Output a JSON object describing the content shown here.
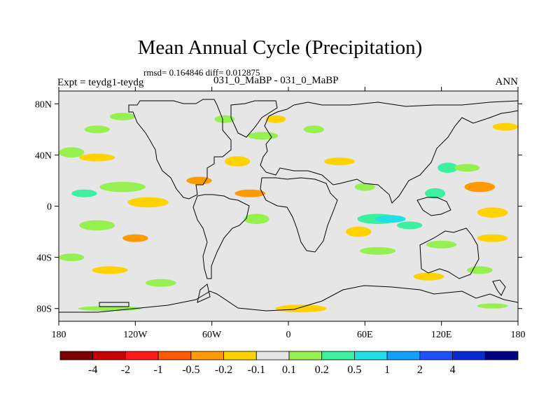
{
  "title": "Mean Annual Cycle (Precipitation)",
  "stats_text": "rmsd= 0.164846 diff= 0.012875",
  "left_label": "Expt = teydg1-teydg",
  "center_label": "031_0_MaBP - 031_0_MaBP",
  "right_label": "ANN",
  "map": {
    "projection": "cylindrical-equidistant",
    "lon_range": [
      -180,
      180
    ],
    "lat_range": [
      -90,
      90
    ],
    "background_color": "#e6e6e6",
    "lon_ticks": [
      {
        "value": -180,
        "label": "180"
      },
      {
        "value": -120,
        "label": "120W"
      },
      {
        "value": -60,
        "label": "60W"
      },
      {
        "value": 0,
        "label": "0"
      },
      {
        "value": 60,
        "label": "60E"
      },
      {
        "value": 120,
        "label": "120E"
      },
      {
        "value": 180,
        "label": "180"
      }
    ],
    "lat_ticks": [
      {
        "value": 80,
        "label": "80N"
      },
      {
        "value": 40,
        "label": "40N"
      },
      {
        "value": 0,
        "label": "0"
      },
      {
        "value": -40,
        "label": "40S"
      },
      {
        "value": -80,
        "label": "80S"
      }
    ]
  },
  "colorbar": {
    "colors": [
      "#7a0000",
      "#c80000",
      "#ff1a1a",
      "#ff5a00",
      "#ff9b00",
      "#ffd200",
      "#e6e6e6",
      "#96f050",
      "#3cf0a0",
      "#20e0e6",
      "#10a0ff",
      "#1e50ff",
      "#0a2ad2",
      "#000080"
    ],
    "labels": [
      "-4",
      "-2",
      "-1",
      "-0.5",
      "-0.2",
      "-0.1",
      "0.1",
      "0.2",
      "0.5",
      "1",
      "2",
      "4"
    ]
  },
  "blobs": [
    {
      "lon": -170,
      "lat": 42,
      "rx": 10,
      "ry": 4,
      "level": "pos-small"
    },
    {
      "lon": -150,
      "lat": 38,
      "rx": 14,
      "ry": 3,
      "level": "neg-small"
    },
    {
      "lon": -130,
      "lat": 15,
      "rx": 18,
      "ry": 4,
      "level": "pos-small"
    },
    {
      "lon": -160,
      "lat": 10,
      "rx": 10,
      "ry": 3,
      "level": "pos-mid"
    },
    {
      "lon": -110,
      "lat": 3,
      "rx": 16,
      "ry": 4,
      "level": "neg-small"
    },
    {
      "lon": -150,
      "lat": -15,
      "rx": 14,
      "ry": 4,
      "level": "pos-small"
    },
    {
      "lon": -120,
      "lat": -25,
      "rx": 10,
      "ry": 3,
      "level": "neg-mid"
    },
    {
      "lon": -170,
      "lat": -40,
      "rx": 10,
      "ry": 3,
      "level": "pos-small"
    },
    {
      "lon": -140,
      "lat": -50,
      "rx": 14,
      "ry": 3,
      "level": "neg-small"
    },
    {
      "lon": -100,
      "lat": -60,
      "rx": 12,
      "ry": 3,
      "level": "pos-small"
    },
    {
      "lon": -150,
      "lat": 60,
      "rx": 10,
      "ry": 3,
      "level": "pos-small"
    },
    {
      "lon": -70,
      "lat": 20,
      "rx": 10,
      "ry": 3,
      "level": "neg-mid"
    },
    {
      "lon": -30,
      "lat": 10,
      "rx": 12,
      "ry": 3,
      "level": "neg-mid"
    },
    {
      "lon": -25,
      "lat": -10,
      "rx": 10,
      "ry": 4,
      "level": "pos-small"
    },
    {
      "lon": -40,
      "lat": 35,
      "rx": 10,
      "ry": 4,
      "level": "neg-small"
    },
    {
      "lon": -20,
      "lat": 55,
      "rx": 12,
      "ry": 3,
      "level": "pos-small"
    },
    {
      "lon": -50,
      "lat": 68,
      "rx": 8,
      "ry": 3,
      "level": "pos-small"
    },
    {
      "lon": -10,
      "lat": 68,
      "rx": 8,
      "ry": 3,
      "level": "neg-small"
    },
    {
      "lon": 20,
      "lat": 60,
      "rx": 8,
      "ry": 3,
      "level": "pos-small"
    },
    {
      "lon": 40,
      "lat": 35,
      "rx": 12,
      "ry": 3,
      "level": "neg-small"
    },
    {
      "lon": 60,
      "lat": 15,
      "rx": 8,
      "ry": 3,
      "level": "pos-small"
    },
    {
      "lon": 70,
      "lat": -10,
      "rx": 16,
      "ry": 4,
      "level": "pos-mid"
    },
    {
      "lon": 80,
      "lat": -10,
      "rx": 12,
      "ry": 3,
      "level": "pos-high"
    },
    {
      "lon": 95,
      "lat": -15,
      "rx": 10,
      "ry": 3,
      "level": "pos-mid"
    },
    {
      "lon": 55,
      "lat": -20,
      "rx": 10,
      "ry": 4,
      "level": "neg-small"
    },
    {
      "lon": 70,
      "lat": -35,
      "rx": 14,
      "ry": 3,
      "level": "pos-small"
    },
    {
      "lon": 115,
      "lat": 10,
      "rx": 8,
      "ry": 4,
      "level": "pos-mid"
    },
    {
      "lon": 125,
      "lat": 30,
      "rx": 8,
      "ry": 4,
      "level": "pos-mid"
    },
    {
      "lon": 140,
      "lat": 30,
      "rx": 10,
      "ry": 3,
      "level": "pos-small"
    },
    {
      "lon": 150,
      "lat": 15,
      "rx": 12,
      "ry": 4,
      "level": "neg-mid"
    },
    {
      "lon": 160,
      "lat": -5,
      "rx": 12,
      "ry": 4,
      "level": "neg-small"
    },
    {
      "lon": 160,
      "lat": -25,
      "rx": 12,
      "ry": 3,
      "level": "neg-small"
    },
    {
      "lon": 120,
      "lat": -30,
      "rx": 12,
      "ry": 3,
      "level": "pos-small"
    },
    {
      "lon": 150,
      "lat": -50,
      "rx": 10,
      "ry": 3,
      "level": "pos-small"
    },
    {
      "lon": 110,
      "lat": -55,
      "rx": 12,
      "ry": 3,
      "level": "neg-small"
    },
    {
      "lon": 10,
      "lat": -80,
      "rx": 20,
      "ry": 3,
      "level": "neg-small"
    },
    {
      "lon": -140,
      "lat": -80,
      "rx": 25,
      "ry": 2,
      "level": "pos-small"
    },
    {
      "lon": 160,
      "lat": -78,
      "rx": 12,
      "ry": 2,
      "level": "pos-small"
    },
    {
      "lon": -130,
      "lat": 70,
      "rx": 10,
      "ry": 3,
      "level": "pos-small"
    },
    {
      "lon": 170,
      "lat": 62,
      "rx": 10,
      "ry": 3,
      "level": "neg-small"
    }
  ]
}
